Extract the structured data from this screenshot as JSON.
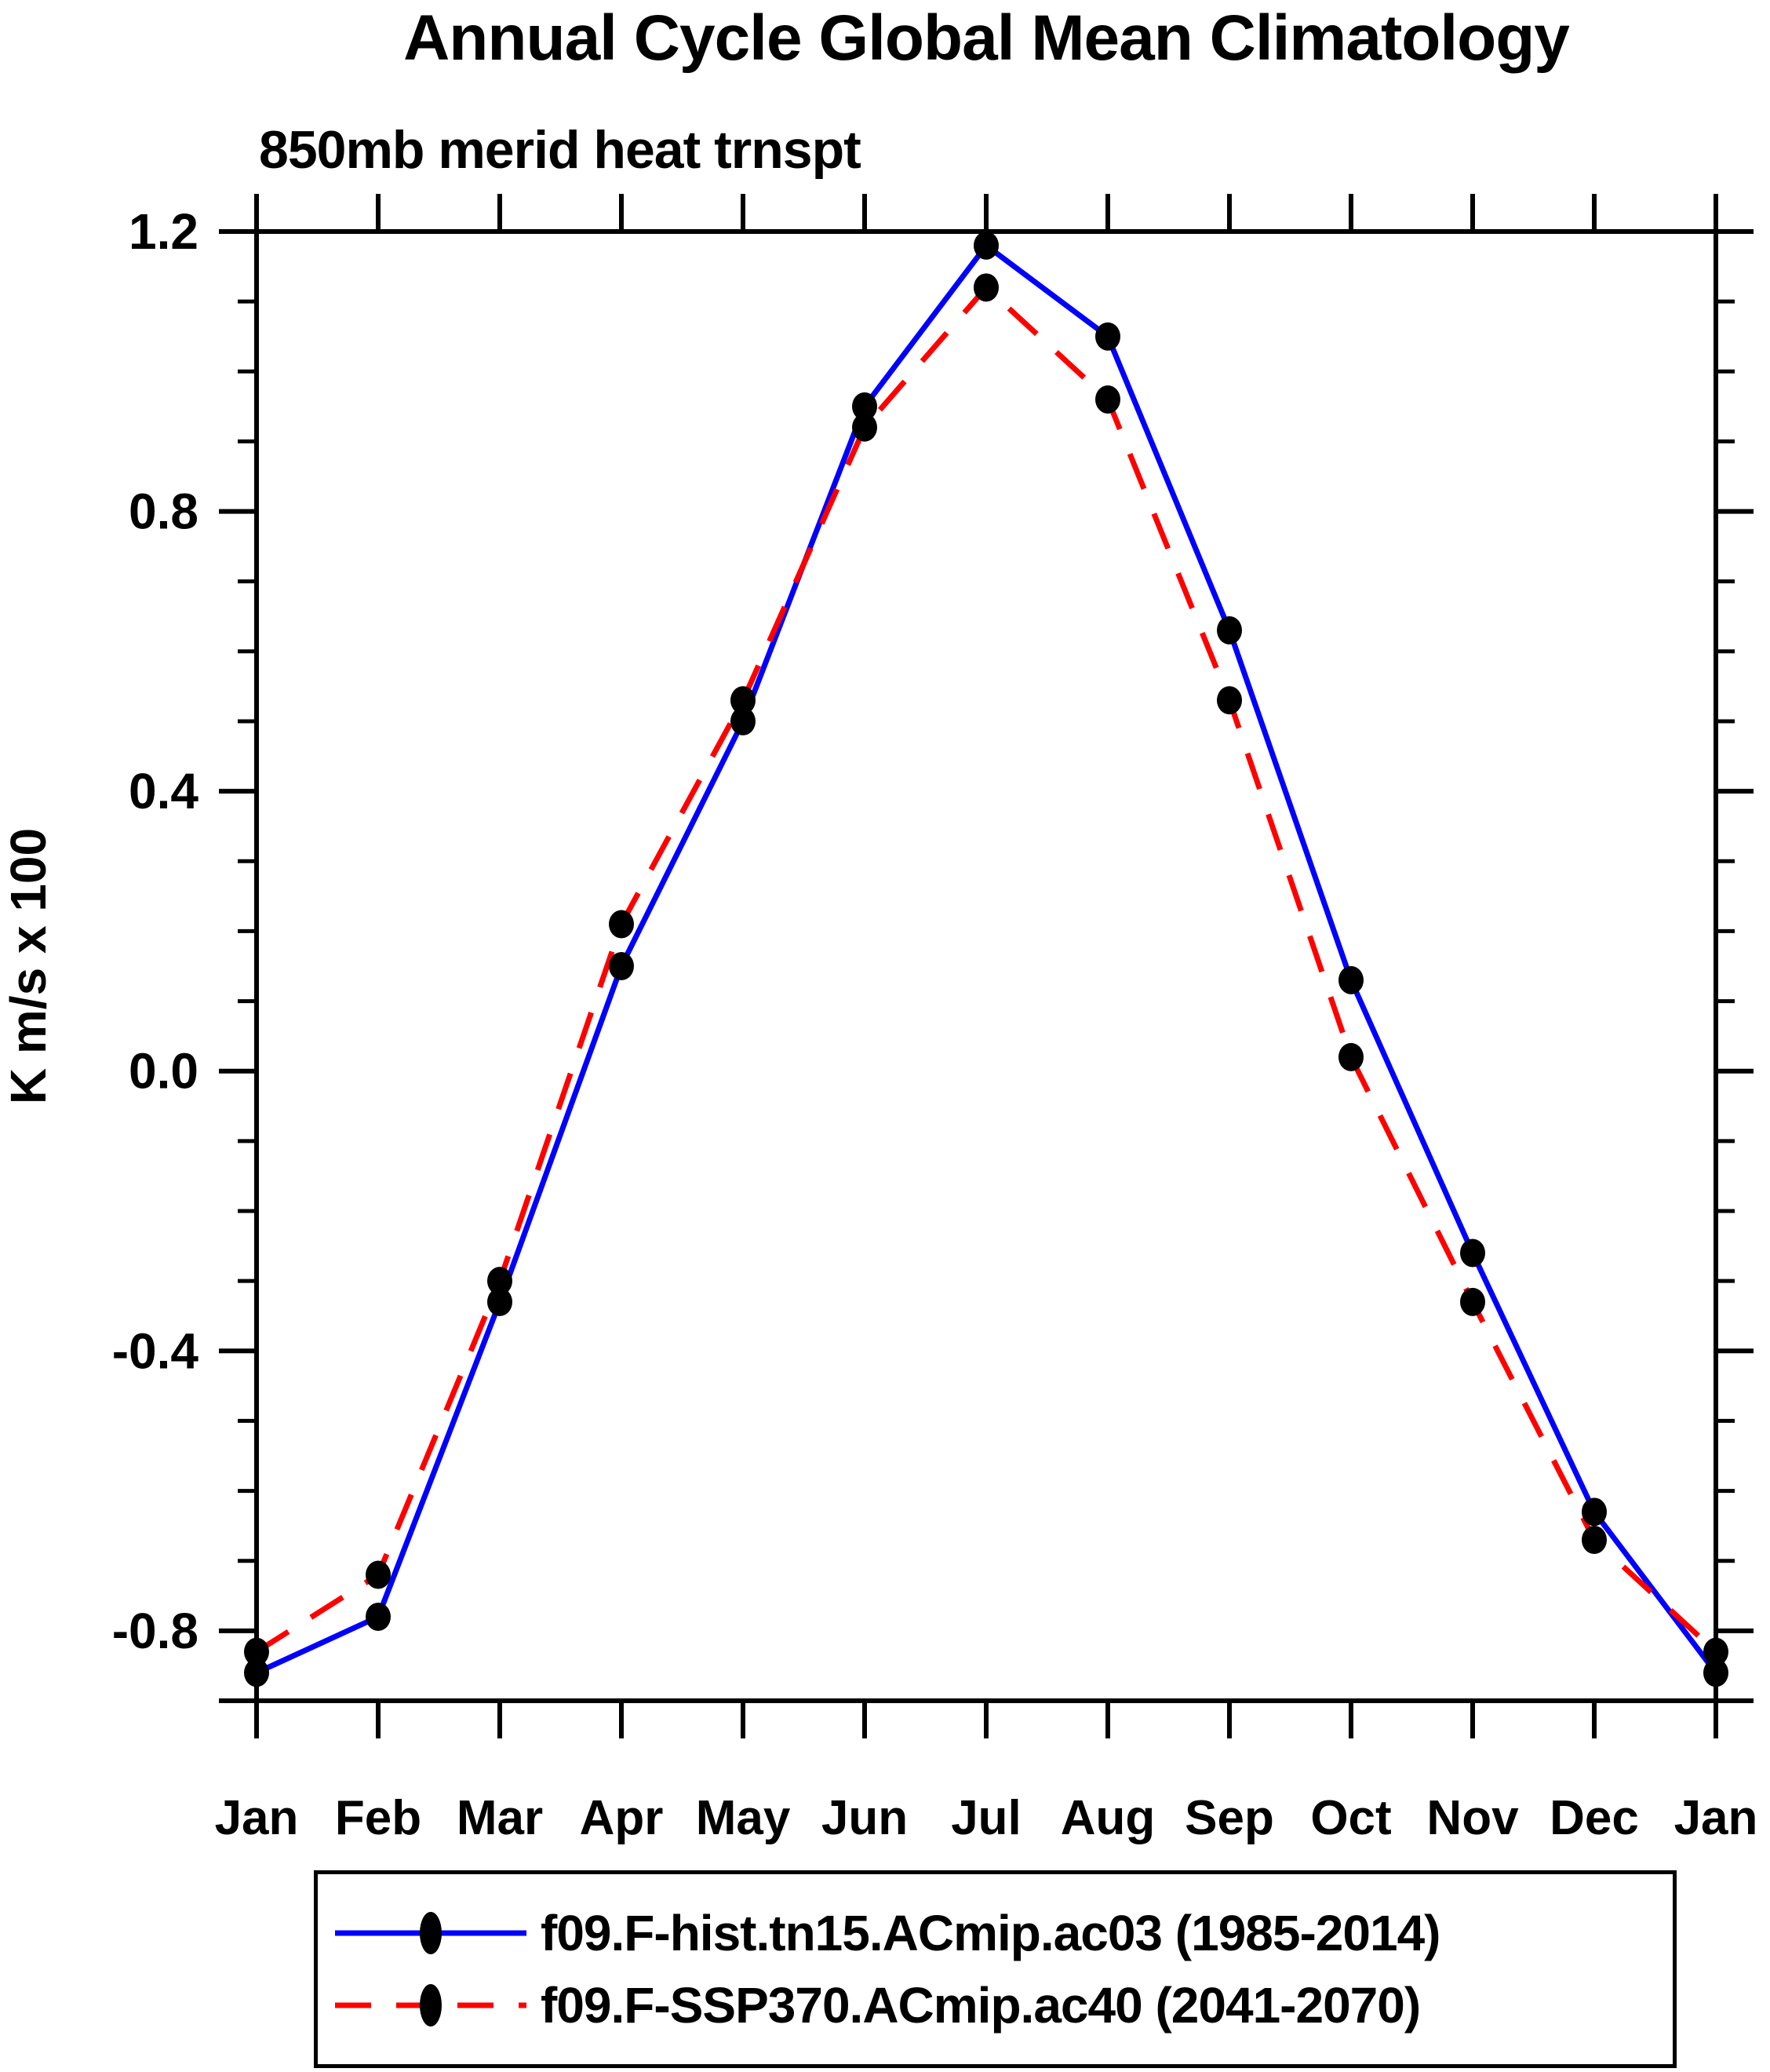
{
  "header": {
    "title": "Annual Cycle Global Mean Climatology",
    "subtitle": "850mb merid heat trnspt"
  },
  "axes": {
    "ylabel": "K m/s x 100"
  },
  "chart_data": {
    "type": "line",
    "title": "Annual Cycle Global Mean Climatology",
    "subtitle": "850mb merid heat trnspt",
    "xlabel": "",
    "ylabel": "K m/s x 100",
    "categories": [
      "Jan",
      "Feb",
      "Mar",
      "Apr",
      "May",
      "Jun",
      "Jul",
      "Aug",
      "Sep",
      "Oct",
      "Nov",
      "Dec",
      "Jan"
    ],
    "series": [
      {
        "name": "f09.F-hist.tn15.ACmip.ac03 (1985-2014)",
        "line_color": "#0000ff",
        "line_style": "solid",
        "marker": "filled-circle",
        "marker_color": "#000000",
        "values": [
          -0.86,
          -0.78,
          -0.33,
          0.15,
          0.5,
          0.95,
          1.18,
          1.05,
          0.63,
          0.13,
          -0.26,
          -0.63,
          -0.86
        ]
      },
      {
        "name": "f09.F-SSP370.ACmip.ac40 (2041-2070)",
        "line_color": "#ff0000",
        "line_style": "dashed",
        "marker": "filled-circle",
        "marker_color": "#000000",
        "values": [
          -0.83,
          -0.72,
          -0.3,
          0.21,
          0.53,
          0.92,
          1.12,
          0.96,
          0.53,
          0.02,
          -0.33,
          -0.67,
          -0.83
        ]
      }
    ],
    "ylim": [
      -0.9,
      1.2
    ],
    "yticks_major": [
      1.2,
      0.8,
      0.4,
      0.0,
      -0.4,
      -0.8
    ],
    "ytick_labels": [
      "1.2",
      "0.8",
      "0.4",
      "0.0",
      "-0.4",
      "-0.8"
    ],
    "ytick_minor_step": 0.1,
    "grid": false,
    "legend_position": "bottom"
  },
  "legend": {
    "items": [
      {
        "label": "f09.F-hist.tn15.ACmip.ac03 (1985-2014)",
        "line_color": "#0000ff",
        "line_style": "solid",
        "marker_color": "#000000"
      },
      {
        "label": "f09.F-SSP370.ACmip.ac40 (2041-2070)",
        "line_color": "#ff0000",
        "line_style": "dashed",
        "marker_color": "#000000"
      }
    ]
  }
}
